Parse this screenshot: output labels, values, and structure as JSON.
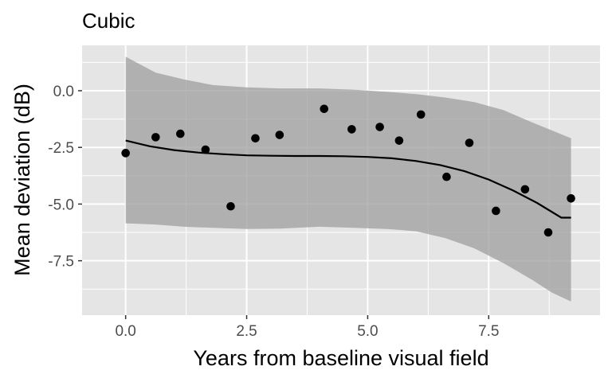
{
  "chart_data": {
    "type": "scatter",
    "title": "Cubic",
    "xlabel": "Years from baseline visual field",
    "ylabel": "Mean deviation (dB)",
    "xlim": [
      -0.9,
      9.8
    ],
    "ylim": [
      -9.9,
      2.0
    ],
    "x_ticks": [
      0.0,
      2.5,
      5.0,
      7.5
    ],
    "x_tick_labels": [
      "0.0",
      "2.5",
      "5.0",
      "7.5"
    ],
    "y_ticks": [
      0.0,
      -2.5,
      -5.0,
      -7.5
    ],
    "y_tick_labels": [
      "0.0",
      "-2.5",
      "-5.0",
      "-7.5"
    ],
    "grid": true,
    "series": [
      {
        "name": "observations",
        "kind": "points",
        "x": [
          0.0,
          0.62,
          1.13,
          1.65,
          2.17,
          2.68,
          3.18,
          4.1,
          4.67,
          5.25,
          5.65,
          6.1,
          6.63,
          7.1,
          7.65,
          8.25,
          8.73,
          9.2
        ],
        "y": [
          -2.75,
          -2.05,
          -1.9,
          -2.6,
          -5.1,
          -2.1,
          -1.95,
          -0.8,
          -1.7,
          -1.6,
          -2.2,
          -1.05,
          -3.8,
          -2.3,
          -5.3,
          -4.35,
          -6.25,
          -4.75
        ]
      },
      {
        "name": "cubic fit",
        "kind": "line",
        "x": [
          0.0,
          0.5,
          1.0,
          1.5,
          2.0,
          2.5,
          3.0,
          3.5,
          4.0,
          4.5,
          5.0,
          5.5,
          6.0,
          6.5,
          7.0,
          7.5,
          8.0,
          8.5,
          9.0,
          9.2
        ],
        "y": [
          -2.2,
          -2.45,
          -2.62,
          -2.73,
          -2.8,
          -2.85,
          -2.87,
          -2.88,
          -2.88,
          -2.89,
          -2.92,
          -2.98,
          -3.1,
          -3.28,
          -3.55,
          -3.92,
          -4.4,
          -4.95,
          -5.6,
          -5.6
        ]
      },
      {
        "name": "confidence band",
        "kind": "band",
        "x": [
          0.0,
          0.62,
          1.2,
          1.8,
          2.5,
          3.2,
          4.0,
          4.7,
          5.4,
          6.0,
          6.6,
          7.2,
          7.8,
          8.4,
          8.8,
          9.2
        ],
        "lower": [
          -5.85,
          -5.9,
          -6.0,
          -6.05,
          -6.1,
          -6.08,
          -6.0,
          -6.05,
          -6.1,
          -6.2,
          -6.5,
          -6.95,
          -7.6,
          -8.35,
          -8.9,
          -9.3
        ],
        "upper": [
          1.5,
          0.8,
          0.5,
          0.25,
          0.15,
          0.1,
          0.1,
          0.05,
          -0.05,
          -0.15,
          -0.3,
          -0.5,
          -0.85,
          -1.4,
          -1.75,
          -2.1
        ]
      }
    ],
    "colors": {
      "panel": "#e5e5e5",
      "grid": "#ffffff",
      "band": "#9e9e9e",
      "band_opacity": 0.75,
      "line": "#000000",
      "points": "#000000"
    }
  }
}
